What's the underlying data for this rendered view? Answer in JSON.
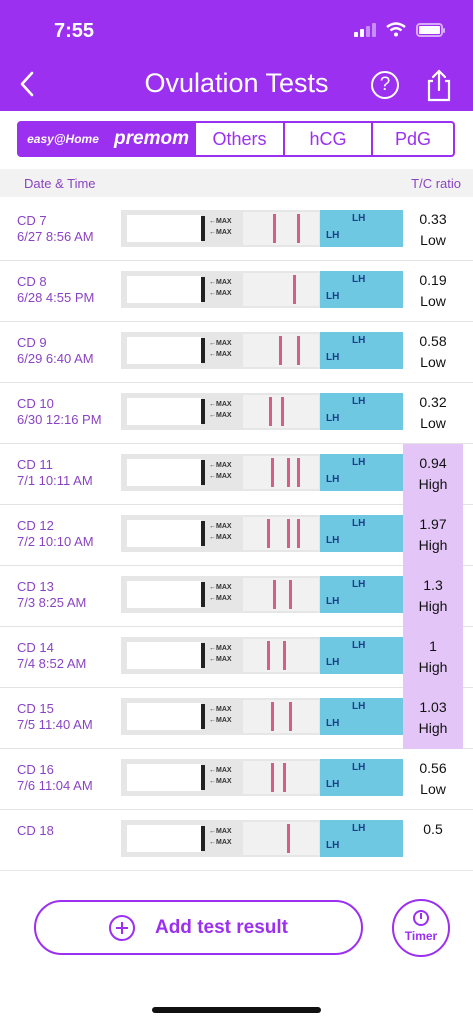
{
  "status": {
    "time": "7:55"
  },
  "header": {
    "title": "Ovulation Tests",
    "help_symbol": "?"
  },
  "brands": {
    "easy_home": "easy@Home",
    "premom": "premom"
  },
  "tabs": [
    "Others",
    "hCG",
    "PdG"
  ],
  "columns": {
    "date_time": "Date & Time",
    "tc_ratio": "T/C ratio"
  },
  "rows": [
    {
      "cd": "CD 7",
      "datetime": "6/27 8:56 AM",
      "ratio": "0.33",
      "level": "Low",
      "high": false
    },
    {
      "cd": "CD 8",
      "datetime": "6/28 4:55 PM",
      "ratio": "0.19",
      "level": "Low",
      "high": false
    },
    {
      "cd": "CD 9",
      "datetime": "6/29 6:40 AM",
      "ratio": "0.58",
      "level": "Low",
      "high": false
    },
    {
      "cd": "CD 10",
      "datetime": "6/30 12:16 PM",
      "ratio": "0.32",
      "level": "Low",
      "high": false
    },
    {
      "cd": "CD 11",
      "datetime": "7/1 10:11 AM",
      "ratio": "0.94",
      "level": "High",
      "high": true
    },
    {
      "cd": "CD 12",
      "datetime": "7/2 10:10 AM",
      "ratio": "1.97",
      "level": "High",
      "high": true
    },
    {
      "cd": "CD 13",
      "datetime": "7/3 8:25 AM",
      "ratio": "1.3",
      "level": "High",
      "high": true
    },
    {
      "cd": "CD 14",
      "datetime": "7/4 8:52 AM",
      "ratio": "1",
      "level": "High",
      "high": true
    },
    {
      "cd": "CD 15",
      "datetime": "7/5 11:40 AM",
      "ratio": "1.03",
      "level": "High",
      "high": true
    },
    {
      "cd": "CD 16",
      "datetime": "7/6 11:04 AM",
      "ratio": "0.56",
      "level": "Low",
      "high": false
    },
    {
      "cd": "CD 18",
      "datetime": "",
      "ratio": "0.5",
      "level": "",
      "high": false
    }
  ],
  "strip_text": {
    "max": "←MAX",
    "lh": "LH"
  },
  "actions": {
    "add_test_result": "Add test result",
    "timer": "Timer"
  },
  "colors": {
    "accent": "#9b30f0",
    "high_bg": "#e3c6f7",
    "test_line": "#d15f86"
  }
}
